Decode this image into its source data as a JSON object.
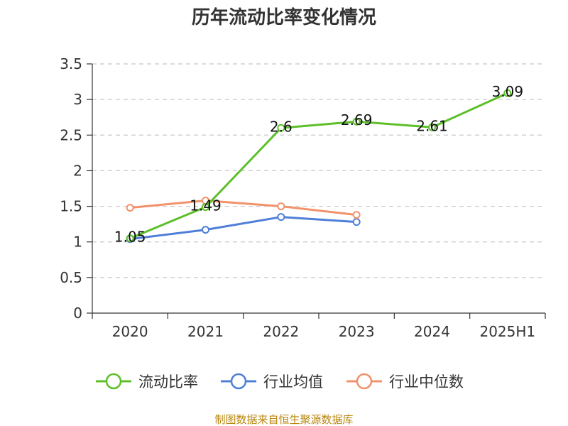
{
  "chart_data": {
    "type": "line",
    "title": "历年流动比率变化情况",
    "categories": [
      "2020",
      "2021",
      "2022",
      "2023",
      "2024",
      "2025H1"
    ],
    "ylim": [
      0,
      3.5
    ],
    "yticks": [
      "0",
      "0.5",
      "1",
      "1.5",
      "2",
      "2.5",
      "3",
      "3.5"
    ],
    "grid": true,
    "legend_position": "bottom",
    "series": [
      {
        "name": "流动比率",
        "color": "#5dbf2a",
        "values": [
          1.05,
          1.49,
          2.6,
          2.69,
          2.61,
          3.09
        ],
        "labels": [
          "1.05",
          "1.49",
          "2.6",
          "2.69",
          "2.61",
          "3.09"
        ]
      },
      {
        "name": "行业均值",
        "color": "#4f7fd8",
        "values": [
          1.04,
          1.17,
          1.35,
          1.28,
          null,
          null
        ]
      },
      {
        "name": "行业中位数",
        "color": "#f2926a",
        "values": [
          1.48,
          1.58,
          1.5,
          1.38,
          null,
          null
        ]
      }
    ]
  },
  "source": "制图数据来自恒生聚源数据库"
}
